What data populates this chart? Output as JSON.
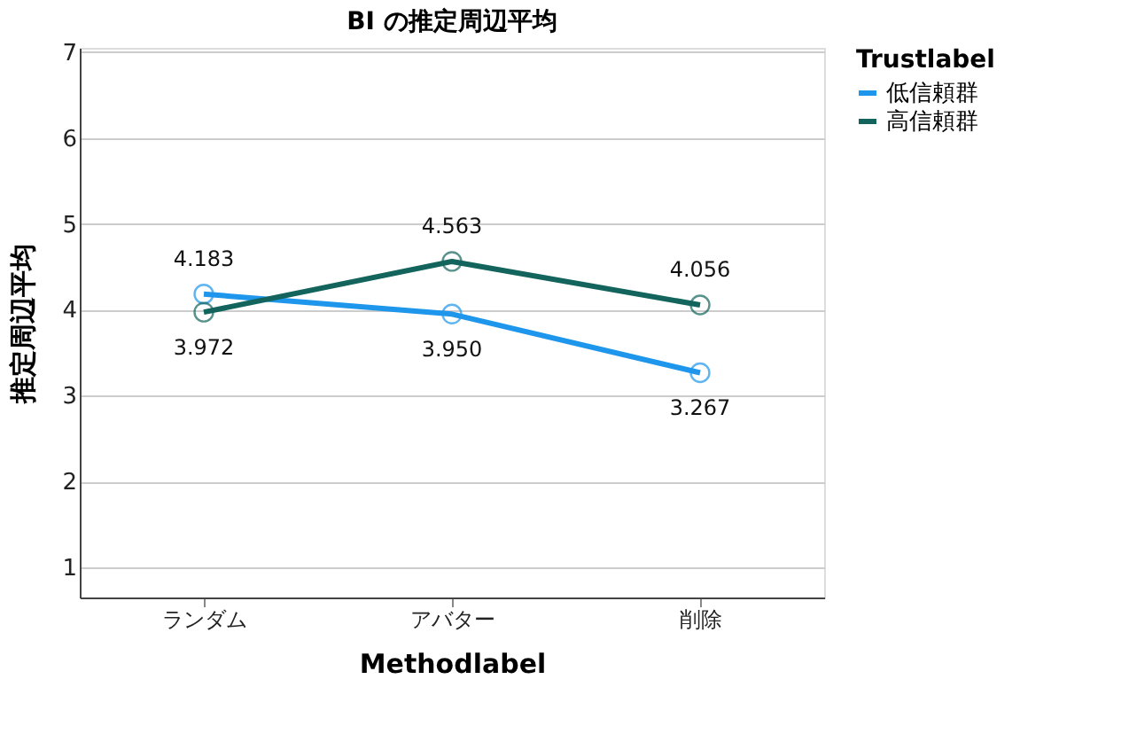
{
  "chart_data": {
    "type": "line",
    "title": "BI の推定周辺平均",
    "xlabel": "Methodlabel",
    "ylabel": "推定周辺平均",
    "legend_title": "Trustlabel",
    "categories": [
      "ランダム",
      "アバター",
      "削除"
    ],
    "series": [
      {
        "name": "低信頼群",
        "color": "#1e96ec",
        "values": [
          4.183,
          3.95,
          3.267
        ],
        "value_labels": [
          "4.183",
          "3.950",
          "3.267"
        ]
      },
      {
        "name": "高信頼群",
        "color": "#13645c",
        "values": [
          3.972,
          4.563,
          4.056
        ],
        "value_labels": [
          "3.972",
          "4.563",
          "4.056"
        ]
      }
    ],
    "ylim": [
      0.65,
      7.05
    ],
    "yticks": [
      1,
      2,
      3,
      4,
      5,
      6,
      7
    ],
    "grid": "y",
    "legend": "top right",
    "marker": "circle",
    "line_style": "solid"
  }
}
